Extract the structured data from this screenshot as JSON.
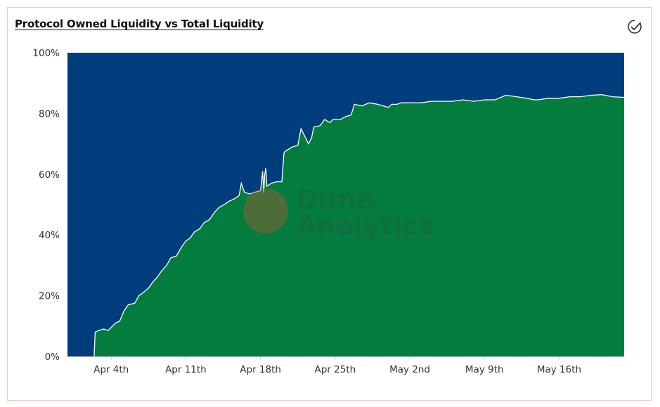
{
  "header": {
    "title": "Protocol Owned Liquidity vs Total Liquidity",
    "verified_icon": "verified-check-icon"
  },
  "watermark": {
    "line1": "Dune",
    "line2": "Analytics"
  },
  "colors": {
    "protocol_owned": "#047c3e",
    "total": "#003d7c",
    "divider_line": "#ffffff",
    "watermark_circle": "#a55a2e"
  },
  "chart_data": {
    "type": "area",
    "stacked": "percent",
    "title": "Protocol Owned Liquidity vs Total Liquidity",
    "xlabel": "",
    "ylabel": "",
    "ylim": [
      0,
      100
    ],
    "y_ticks": [
      "0%",
      "20%",
      "40%",
      "60%",
      "80%",
      "100%"
    ],
    "x_tick_labels": [
      "Apr 4th",
      "Apr 11th",
      "Apr 18th",
      "Apr 25th",
      "May 2nd",
      "May 9th",
      "May 16th"
    ],
    "x_tick_days": [
      4,
      11,
      18,
      25,
      32,
      39,
      46
    ],
    "xlim_days": [
      -0.1,
      52.1
    ],
    "grid": false,
    "legend": "none",
    "series": [
      {
        "stack_position": "bottom",
        "x_days": [
          2.4,
          2.5,
          2.9,
          3.3,
          3.7,
          4.4,
          4.8,
          5.2,
          5.6,
          6.2,
          6.6,
          7.0,
          7.5,
          7.9,
          8.3,
          8.7,
          9.2,
          9.6,
          10.1,
          10.6,
          11.0,
          11.4,
          11.8,
          12.3,
          12.7,
          13.2,
          13.7,
          14.1,
          14.6,
          15.0,
          15.6,
          16.0,
          16.2,
          16.5,
          17.0,
          17.4,
          18.0,
          18.2,
          18.3,
          18.4,
          18.5,
          18.6,
          19.0,
          19.5,
          20.0,
          20.2,
          20.3,
          21.0,
          21.5,
          21.8,
          22.5,
          22.8,
          22.9,
          23.0,
          23.6,
          24.0,
          24.5,
          24.8,
          25.5,
          26.0,
          26.5,
          26.8,
          27.5,
          28.2,
          29.0,
          29.5,
          30.0,
          30.3,
          30.8,
          31.2,
          32.0,
          33.0,
          34.0,
          35.0,
          36.0,
          37.0,
          38.0,
          39.0,
          40.0,
          41.0,
          42.0,
          43.0,
          43.6,
          44.0,
          45.0,
          46.0,
          47.0,
          48.0,
          49.0,
          50.0,
          51.0,
          52.1
        ],
        "values": [
          0,
          8,
          8.6,
          9,
          8.5,
          11,
          11.6,
          15,
          17,
          17.5,
          20,
          21,
          22.5,
          24.5,
          26,
          28,
          30,
          32.5,
          33,
          36,
          38,
          39,
          41,
          42,
          44,
          45,
          47.5,
          49,
          50,
          51,
          52,
          53,
          57,
          54,
          53.5,
          54,
          54.5,
          61,
          54,
          60,
          62,
          56,
          57,
          57.5,
          57.5,
          67,
          67.5,
          69,
          69.5,
          75,
          70,
          72,
          74,
          75.5,
          76,
          78,
          77,
          78,
          78,
          79,
          79.5,
          83,
          82.5,
          83.5,
          83,
          82.5,
          82,
          83,
          83,
          83.5,
          83.5,
          83.5,
          84,
          84,
          84,
          84.5,
          84,
          84.5,
          84.5,
          86,
          85.5,
          85,
          84.5,
          84.5,
          85,
          85,
          85.5,
          85.5,
          86,
          86.2,
          85.5,
          85.3
        ]
      },
      {
        "stack_position": "top",
        "values_note": ""
      }
    ]
  }
}
